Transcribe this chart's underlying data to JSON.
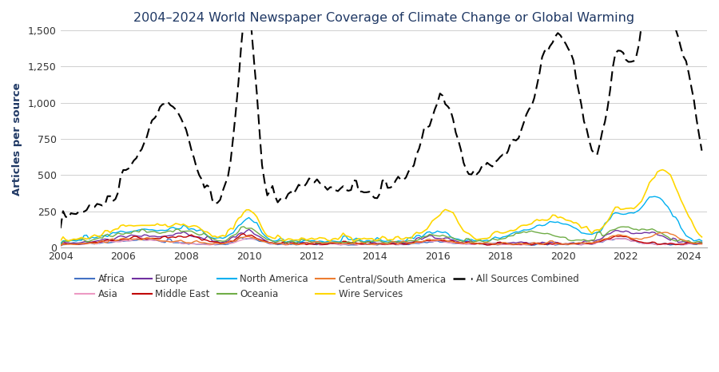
{
  "title": "2004–2024 World Newspaper Coverage of Climate Change or Global Warming",
  "ylabel": "Articles per source",
  "xlabel": "",
  "ylim": [
    0,
    1500
  ],
  "yticks": [
    0,
    250,
    500,
    750,
    1000,
    1250,
    1500
  ],
  "colors": {
    "Africa": "#4472C4",
    "Asia": "#ED9AC3",
    "Europe": "#7030A0",
    "Middle East": "#C00000",
    "North America": "#00B0F0",
    "Oceania": "#70AD47",
    "Central/South America": "#ED7D31",
    "Wire Services": "#FFD700",
    "All Sources Combined": "#000000"
  },
  "background_color": "#ffffff",
  "grid_color": "#c8c8c8",
  "title_color": "#1F3864",
  "ylabel_color": "#1F3864"
}
